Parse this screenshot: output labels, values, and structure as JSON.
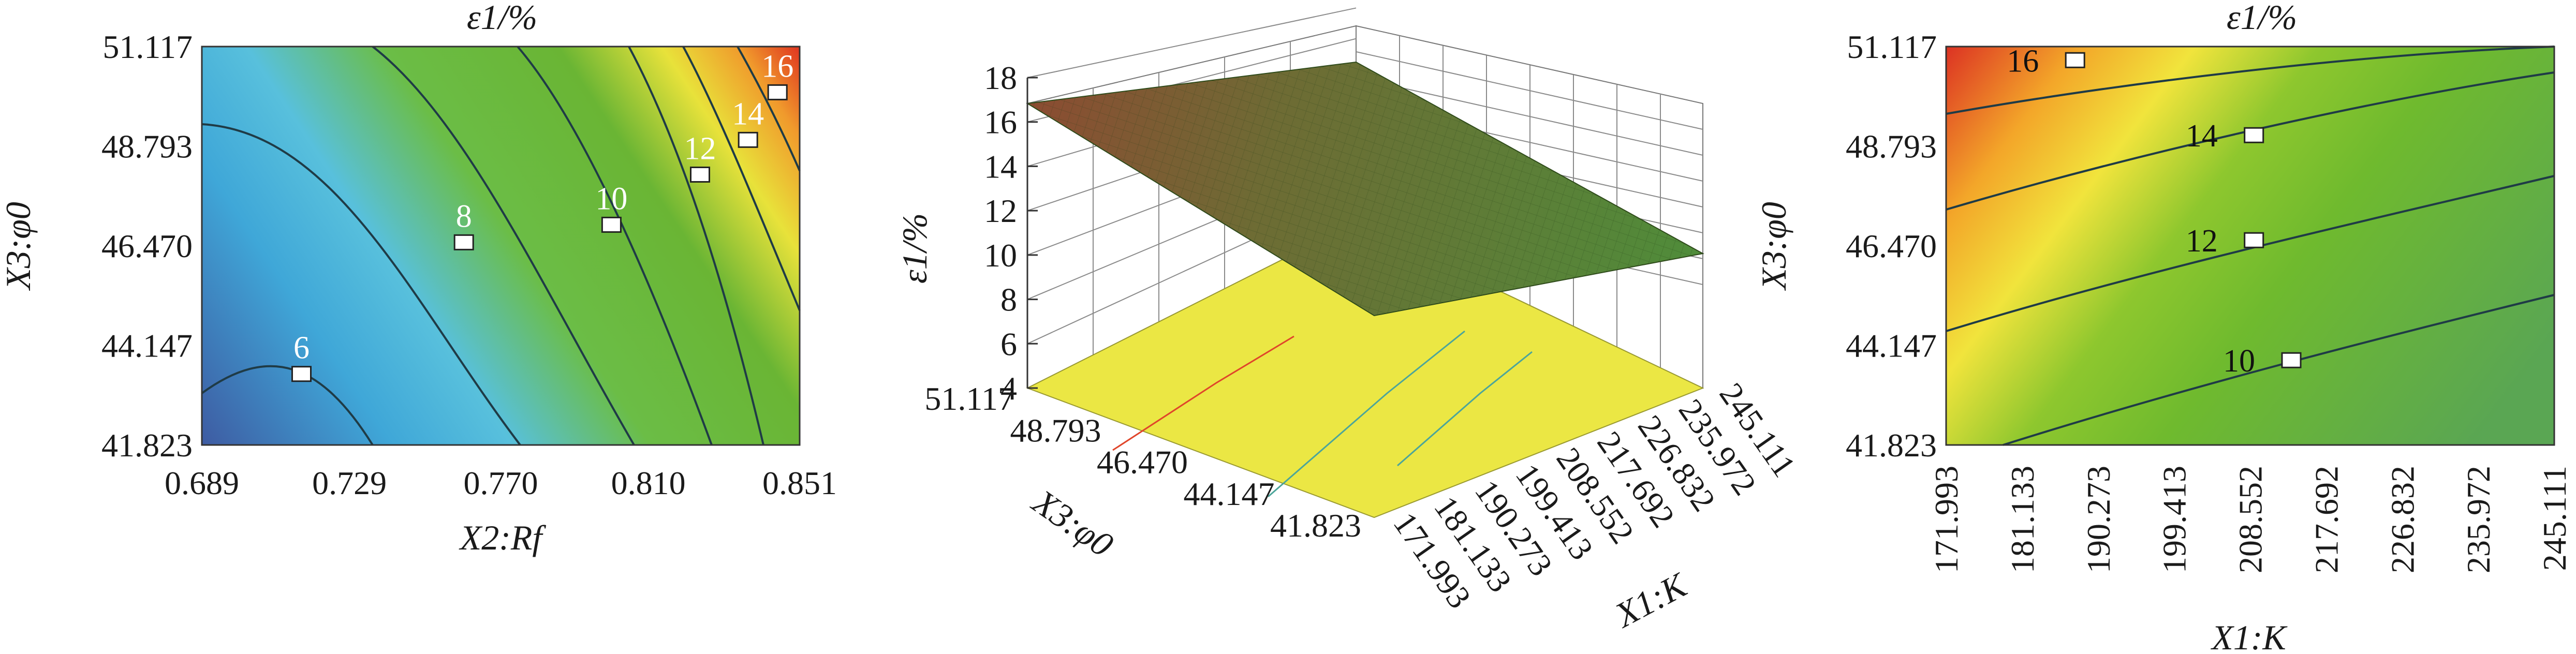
{
  "figure": {
    "panels": [
      {
        "id": "left",
        "title": "ε1/%",
        "xlabel": "X2:Rf",
        "ylabel": "X3:φ0",
        "x_ticks": [
          "0.689",
          "0.729",
          "0.770",
          "0.810",
          "0.851"
        ],
        "y_ticks": [
          "41.823",
          "44.147",
          "46.470",
          "48.793",
          "51.117"
        ],
        "contour_labels": [
          "6",
          "8",
          "10",
          "12",
          "14",
          "16"
        ]
      },
      {
        "id": "middle",
        "zlabel": "ε1/%",
        "xlabel": "X3:φ0",
        "ylabel": "X1:K",
        "z_ticks": [
          "4",
          "6",
          "8",
          "10",
          "12",
          "14",
          "16",
          "18"
        ],
        "x_ticks": [
          "51.117",
          "48.793",
          "46.470",
          "44.147",
          "41.823"
        ],
        "y_ticks": [
          "171.993",
          "181.133",
          "190.273",
          "199.413",
          "208.552",
          "217.692",
          "226.832",
          "235.972",
          "245.111"
        ]
      },
      {
        "id": "right",
        "title": "ε1/%",
        "xlabel": "X1:K",
        "ylabel": "X3:φ0",
        "x_ticks": [
          "171.993",
          "181.133",
          "190.273",
          "199.413",
          "208.552",
          "217.692",
          "226.832",
          "235.972",
          "245.111"
        ],
        "y_ticks": [
          "41.823",
          "44.147",
          "46.470",
          "48.793",
          "51.117"
        ],
        "contour_labels": [
          "16",
          "14",
          "12",
          "10"
        ]
      }
    ]
  },
  "chart_data": [
    {
      "type": "heatmap",
      "subtype": "contour",
      "title": "ε1/%",
      "xlabel": "X2:Rf",
      "ylabel": "X3:φ0",
      "xlim": [
        0.689,
        0.851
      ],
      "ylim": [
        41.823,
        51.117
      ],
      "x_ticks": [
        0.689,
        0.729,
        0.77,
        0.81,
        0.851
      ],
      "y_ticks": [
        41.823,
        44.147,
        46.47,
        48.793,
        51.117
      ],
      "contour_levels": [
        6,
        8,
        10,
        12,
        14,
        16
      ],
      "contour_label_points": [
        {
          "level": 6,
          "x": 0.716,
          "y": 43.48
        },
        {
          "level": 8,
          "x": 0.76,
          "y": 46.55
        },
        {
          "level": 10,
          "x": 0.8,
          "y": 46.96
        },
        {
          "level": 12,
          "x": 0.824,
          "y": 48.13
        },
        {
          "level": 14,
          "x": 0.837,
          "y": 48.94
        },
        {
          "level": 16,
          "x": 0.845,
          "y": 50.05
        }
      ],
      "value_range": [
        5,
        17.5
      ],
      "colorscale": [
        "#3a5da3",
        "#4ab7de",
        "#6abc3a",
        "#f0e436",
        "#e23a1e"
      ]
    },
    {
      "type": "heatmap",
      "subtype": "surface3d",
      "zlabel": "ε1/%",
      "xlabel": "X3:φ0",
      "ylabel": "X1:K",
      "zlim": [
        4,
        18
      ],
      "x_ticks": [
        51.117,
        48.793,
        46.47,
        44.147,
        41.823
      ],
      "y_ticks": [
        171.993,
        181.133,
        190.273,
        199.413,
        208.552,
        217.692,
        226.832,
        235.972,
        245.111
      ],
      "z_ticks": [
        4,
        6,
        8,
        10,
        12,
        14,
        16,
        18
      ],
      "corner_values": {
        "phi_high_K_low": 16.8,
        "phi_high_K_high": 14.9,
        "phi_low_K_low": 9.4,
        "phi_low_K_high": 8.0
      },
      "surface_colors": [
        "#5e9a3a",
        "#8a4a32"
      ],
      "floor_color": "#ece842"
    },
    {
      "type": "heatmap",
      "subtype": "contour",
      "title": "ε1/%",
      "xlabel": "X1:K",
      "ylabel": "X3:φ0",
      "xlim": [
        171.993,
        245.111
      ],
      "ylim": [
        41.823,
        51.117
      ],
      "x_ticks": [
        171.993,
        181.133,
        190.273,
        199.413,
        208.552,
        217.692,
        226.832,
        235.972,
        245.111
      ],
      "y_ticks": [
        41.823,
        44.147,
        46.47,
        48.793,
        51.117
      ],
      "contour_levels": [
        10,
        12,
        14,
        16
      ],
      "contour_label_points": [
        {
          "level": 16,
          "x": 187.5,
          "y": 50.8
        },
        {
          "level": 14,
          "x": 209.0,
          "y": 49.05
        },
        {
          "level": 12,
          "x": 209.0,
          "y": 46.6
        },
        {
          "level": 10,
          "x": 213.5,
          "y": 43.8
        }
      ],
      "value_range": [
        8,
        17.5
      ],
      "colorscale": [
        "#5aa84a",
        "#7cc02e",
        "#f2e640",
        "#f3a22a",
        "#de3525"
      ]
    }
  ]
}
